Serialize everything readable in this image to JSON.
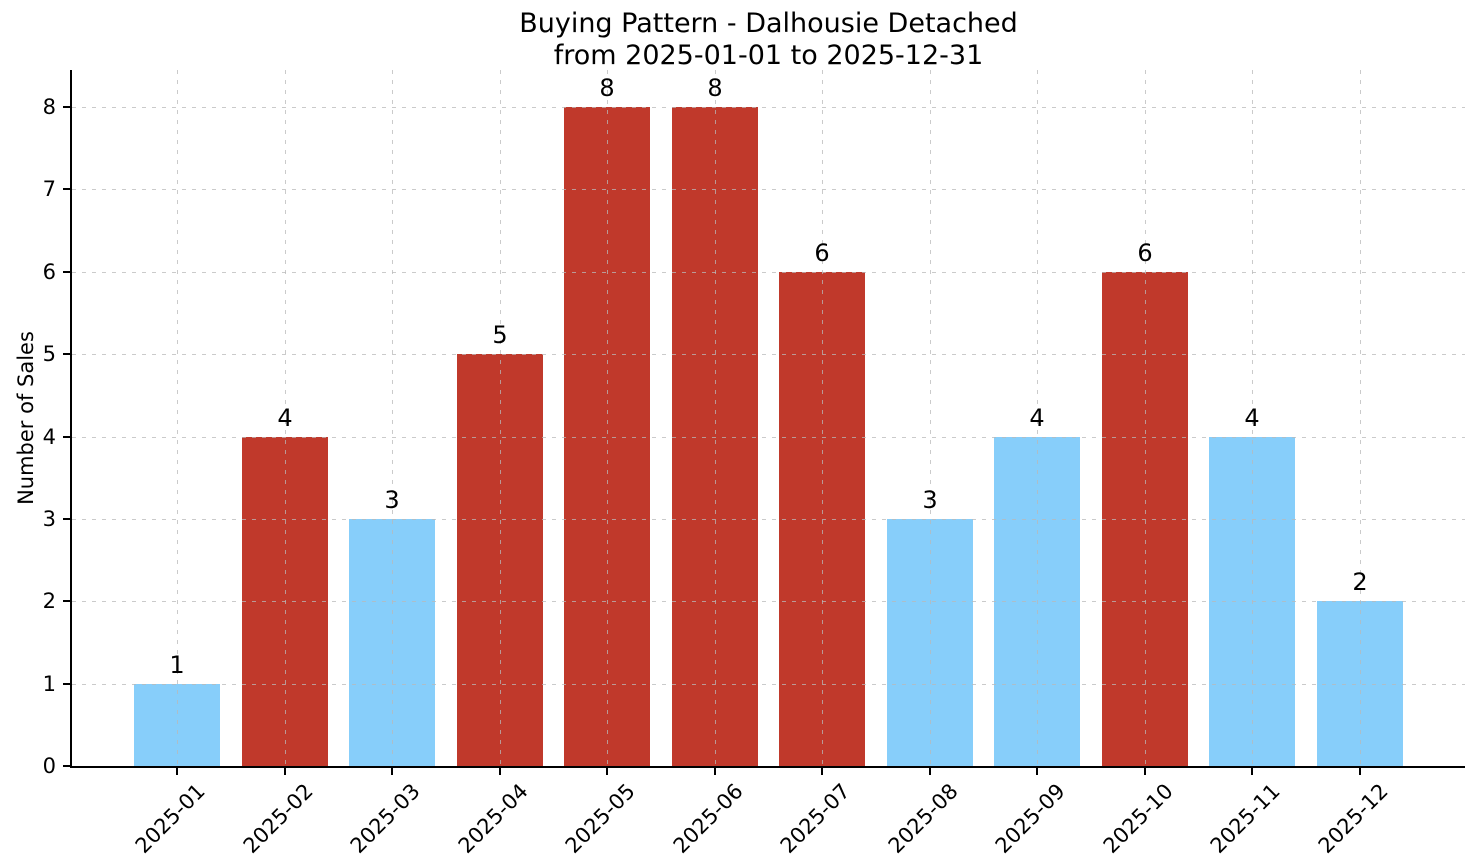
{
  "chart_data": {
    "type": "bar",
    "title": "Buying Pattern - Dalhousie Detached",
    "subtitle": "from 2025-01-01 to 2025-12-31",
    "xlabel": "",
    "ylabel": "Number of Sales",
    "categories": [
      "2025-01",
      "2025-02",
      "2025-03",
      "2025-04",
      "2025-05",
      "2025-06",
      "2025-07",
      "2025-08",
      "2025-09",
      "2025-10",
      "2025-11",
      "2025-12"
    ],
    "values": [
      1,
      4,
      3,
      5,
      8,
      8,
      6,
      3,
      4,
      6,
      4,
      2
    ],
    "data_labels": [
      "1",
      "4",
      "3",
      "5",
      "8",
      "8",
      "6",
      "3",
      "4",
      "6",
      "4",
      "2"
    ],
    "bar_colors": [
      "#87CEFA",
      "#C0392B",
      "#87CEFA",
      "#C0392B",
      "#C0392B",
      "#C0392B",
      "#C0392B",
      "#87CEFA",
      "#87CEFA",
      "#C0392B",
      "#87CEFA",
      "#87CEFA"
    ],
    "y_ticks": [
      0,
      1,
      2,
      3,
      4,
      5,
      6,
      7,
      8
    ],
    "ylim": [
      0,
      8.45
    ],
    "xlim": [
      -0.98,
      11.98
    ],
    "bar_width": 0.8,
    "x_tick_rotation": 45,
    "grid": true,
    "grid_style": "dashed",
    "legend_position": "none",
    "colors": {
      "bar_blue": "#87CEFA",
      "bar_red": "#C0392B",
      "grid": "#b9b9b9",
      "axis": "#000000",
      "background": "#ffffff",
      "text": "#000000"
    }
  }
}
